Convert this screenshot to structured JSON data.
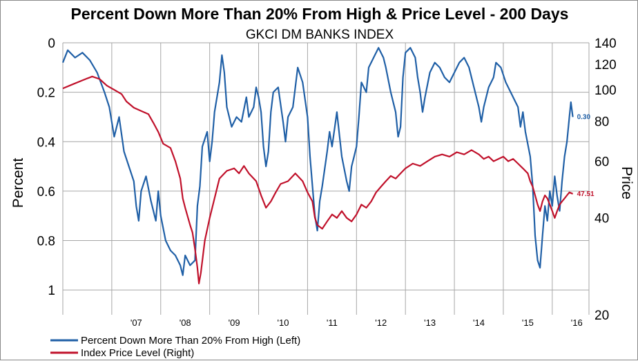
{
  "chart_data": {
    "type": "line",
    "title": "Percent Down More Than 20% From High & Price Level - 200 Days",
    "subtitle": "GKCI DM BANKS INDEX",
    "ylabel_left": "Percent",
    "ylabel_right": "Price",
    "left_axis": {
      "reversed": true,
      "range": [
        0,
        1.1
      ],
      "ticks": [
        "0",
        "0.2",
        "0.4",
        "0.6",
        "0.8",
        "1"
      ]
    },
    "right_axis": {
      "scale": "log",
      "range": [
        20,
        140
      ],
      "ticks": [
        "20",
        "40",
        "60",
        "80",
        "100",
        "120",
        "140"
      ]
    },
    "x_ticks": [
      "'07",
      "'08",
      "'09",
      "'10",
      "'11",
      "'12",
      "'13",
      "'14",
      "'15",
      "'16"
    ],
    "grid": true,
    "legend_position": "bottom-left",
    "colors": {
      "percent": "#1f5fa6",
      "price": "#c0102a",
      "grid": "#a6a6a6"
    },
    "series": [
      {
        "name": "Percent Down More Than 20% From High (Left)",
        "axis": "left",
        "end_label": "0.30",
        "points": [
          [
            2006.0,
            0.08
          ],
          [
            2006.1,
            0.03
          ],
          [
            2006.25,
            0.06
          ],
          [
            2006.4,
            0.04
          ],
          [
            2006.55,
            0.07
          ],
          [
            2006.7,
            0.12
          ],
          [
            2006.85,
            0.2
          ],
          [
            2006.95,
            0.26
          ],
          [
            2007.05,
            0.38
          ],
          [
            2007.15,
            0.3
          ],
          [
            2007.25,
            0.44
          ],
          [
            2007.35,
            0.5
          ],
          [
            2007.45,
            0.56
          ],
          [
            2007.5,
            0.66
          ],
          [
            2007.55,
            0.72
          ],
          [
            2007.6,
            0.6
          ],
          [
            2007.7,
            0.54
          ],
          [
            2007.8,
            0.64
          ],
          [
            2007.9,
            0.72
          ],
          [
            2007.95,
            0.6
          ],
          [
            2008.0,
            0.7
          ],
          [
            2008.1,
            0.8
          ],
          [
            2008.2,
            0.84
          ],
          [
            2008.3,
            0.86
          ],
          [
            2008.4,
            0.9
          ],
          [
            2008.45,
            0.94
          ],
          [
            2008.5,
            0.86
          ],
          [
            2008.6,
            0.9
          ],
          [
            2008.7,
            0.88
          ],
          [
            2008.75,
            0.66
          ],
          [
            2008.8,
            0.58
          ],
          [
            2008.85,
            0.42
          ],
          [
            2008.95,
            0.36
          ],
          [
            2009.0,
            0.48
          ],
          [
            2009.05,
            0.4
          ],
          [
            2009.1,
            0.28
          ],
          [
            2009.2,
            0.16
          ],
          [
            2009.25,
            0.05
          ],
          [
            2009.3,
            0.12
          ],
          [
            2009.35,
            0.26
          ],
          [
            2009.45,
            0.34
          ],
          [
            2009.55,
            0.3
          ],
          [
            2009.65,
            0.32
          ],
          [
            2009.75,
            0.22
          ],
          [
            2009.8,
            0.3
          ],
          [
            2009.9,
            0.26
          ],
          [
            2009.95,
            0.18
          ],
          [
            2010.0,
            0.22
          ],
          [
            2010.05,
            0.28
          ],
          [
            2010.1,
            0.42
          ],
          [
            2010.15,
            0.5
          ],
          [
            2010.2,
            0.44
          ],
          [
            2010.25,
            0.28
          ],
          [
            2010.3,
            0.2
          ],
          [
            2010.4,
            0.18
          ],
          [
            2010.5,
            0.32
          ],
          [
            2010.55,
            0.4
          ],
          [
            2010.6,
            0.3
          ],
          [
            2010.7,
            0.26
          ],
          [
            2010.8,
            0.1
          ],
          [
            2010.9,
            0.16
          ],
          [
            2011.0,
            0.3
          ],
          [
            2011.05,
            0.46
          ],
          [
            2011.1,
            0.58
          ],
          [
            2011.15,
            0.7
          ],
          [
            2011.2,
            0.76
          ],
          [
            2011.25,
            0.64
          ],
          [
            2011.3,
            0.58
          ],
          [
            2011.4,
            0.44
          ],
          [
            2011.45,
            0.36
          ],
          [
            2011.5,
            0.42
          ],
          [
            2011.6,
            0.28
          ],
          [
            2011.7,
            0.46
          ],
          [
            2011.8,
            0.56
          ],
          [
            2011.85,
            0.6
          ],
          [
            2011.9,
            0.5
          ],
          [
            2011.95,
            0.46
          ],
          [
            2012.0,
            0.42
          ],
          [
            2012.05,
            0.3
          ],
          [
            2012.1,
            0.16
          ],
          [
            2012.2,
            0.2
          ],
          [
            2012.25,
            0.1
          ],
          [
            2012.35,
            0.06
          ],
          [
            2012.45,
            0.02
          ],
          [
            2012.55,
            0.06
          ],
          [
            2012.6,
            0.1
          ],
          [
            2012.7,
            0.2
          ],
          [
            2012.8,
            0.28
          ],
          [
            2012.85,
            0.38
          ],
          [
            2012.9,
            0.34
          ],
          [
            2012.95,
            0.14
          ],
          [
            2013.0,
            0.04
          ],
          [
            2013.1,
            0.02
          ],
          [
            2013.2,
            0.06
          ],
          [
            2013.25,
            0.14
          ],
          [
            2013.3,
            0.2
          ],
          [
            2013.35,
            0.28
          ],
          [
            2013.4,
            0.22
          ],
          [
            2013.5,
            0.12
          ],
          [
            2013.6,
            0.08
          ],
          [
            2013.7,
            0.1
          ],
          [
            2013.8,
            0.14
          ],
          [
            2013.9,
            0.16
          ],
          [
            2014.0,
            0.12
          ],
          [
            2014.1,
            0.08
          ],
          [
            2014.2,
            0.06
          ],
          [
            2014.3,
            0.1
          ],
          [
            2014.4,
            0.18
          ],
          [
            2014.5,
            0.26
          ],
          [
            2014.55,
            0.32
          ],
          [
            2014.6,
            0.26
          ],
          [
            2014.7,
            0.18
          ],
          [
            2014.8,
            0.14
          ],
          [
            2014.85,
            0.08
          ],
          [
            2014.95,
            0.1
          ],
          [
            2015.05,
            0.16
          ],
          [
            2015.15,
            0.2
          ],
          [
            2015.3,
            0.26
          ],
          [
            2015.35,
            0.34
          ],
          [
            2015.4,
            0.28
          ],
          [
            2015.45,
            0.36
          ],
          [
            2015.55,
            0.46
          ],
          [
            2015.6,
            0.58
          ],
          [
            2015.65,
            0.78
          ],
          [
            2015.7,
            0.88
          ],
          [
            2015.75,
            0.91
          ],
          [
            2015.8,
            0.78
          ],
          [
            2015.85,
            0.66
          ],
          [
            2015.9,
            0.72
          ],
          [
            2015.95,
            0.6
          ],
          [
            2016.0,
            0.66
          ],
          [
            2016.05,
            0.54
          ],
          [
            2016.1,
            0.62
          ],
          [
            2016.15,
            0.68
          ],
          [
            2016.2,
            0.56
          ],
          [
            2016.25,
            0.46
          ],
          [
            2016.3,
            0.4
          ],
          [
            2016.35,
            0.3
          ],
          [
            2016.38,
            0.24
          ],
          [
            2016.42,
            0.3
          ]
        ]
      },
      {
        "name": "Index Price Level (Right)",
        "axis": "right",
        "end_label": "47.51",
        "points": [
          [
            2006.0,
            101
          ],
          [
            2006.2,
            104
          ],
          [
            2006.4,
            107
          ],
          [
            2006.6,
            110
          ],
          [
            2006.75,
            108
          ],
          [
            2006.9,
            103
          ],
          [
            2007.05,
            100
          ],
          [
            2007.2,
            97
          ],
          [
            2007.3,
            92
          ],
          [
            2007.45,
            88
          ],
          [
            2007.6,
            86
          ],
          [
            2007.75,
            84
          ],
          [
            2007.85,
            79
          ],
          [
            2007.95,
            74
          ],
          [
            2008.05,
            68
          ],
          [
            2008.2,
            66
          ],
          [
            2008.3,
            60
          ],
          [
            2008.4,
            53
          ],
          [
            2008.45,
            46
          ],
          [
            2008.5,
            43
          ],
          [
            2008.6,
            38
          ],
          [
            2008.65,
            36
          ],
          [
            2008.7,
            32
          ],
          [
            2008.75,
            28
          ],
          [
            2008.78,
            25
          ],
          [
            2008.82,
            27
          ],
          [
            2008.9,
            34
          ],
          [
            2009.0,
            40
          ],
          [
            2009.1,
            46
          ],
          [
            2009.2,
            53
          ],
          [
            2009.35,
            56
          ],
          [
            2009.5,
            57
          ],
          [
            2009.6,
            55
          ],
          [
            2009.7,
            58
          ],
          [
            2009.8,
            55
          ],
          [
            2009.95,
            52
          ],
          [
            2010.05,
            47
          ],
          [
            2010.15,
            43
          ],
          [
            2010.25,
            45
          ],
          [
            2010.35,
            48
          ],
          [
            2010.45,
            51
          ],
          [
            2010.6,
            52
          ],
          [
            2010.75,
            55
          ],
          [
            2010.9,
            52
          ],
          [
            2011.0,
            48
          ],
          [
            2011.1,
            45
          ],
          [
            2011.15,
            40
          ],
          [
            2011.2,
            38
          ],
          [
            2011.3,
            37
          ],
          [
            2011.4,
            39
          ],
          [
            2011.5,
            41
          ],
          [
            2011.6,
            40
          ],
          [
            2011.7,
            42
          ],
          [
            2011.8,
            40
          ],
          [
            2011.9,
            39
          ],
          [
            2012.0,
            41
          ],
          [
            2012.1,
            44
          ],
          [
            2012.2,
            43
          ],
          [
            2012.3,
            45
          ],
          [
            2012.4,
            48
          ],
          [
            2012.5,
            50
          ],
          [
            2012.6,
            52
          ],
          [
            2012.7,
            54
          ],
          [
            2012.8,
            53
          ],
          [
            2012.9,
            55
          ],
          [
            2013.0,
            57
          ],
          [
            2013.15,
            59
          ],
          [
            2013.3,
            58
          ],
          [
            2013.45,
            60
          ],
          [
            2013.6,
            62
          ],
          [
            2013.75,
            63
          ],
          [
            2013.9,
            62
          ],
          [
            2014.05,
            64
          ],
          [
            2014.2,
            63
          ],
          [
            2014.35,
            65
          ],
          [
            2014.5,
            63
          ],
          [
            2014.6,
            61
          ],
          [
            2014.7,
            62
          ],
          [
            2014.8,
            60
          ],
          [
            2014.9,
            61
          ],
          [
            2015.0,
            62
          ],
          [
            2015.1,
            60
          ],
          [
            2015.2,
            61
          ],
          [
            2015.3,
            59
          ],
          [
            2015.4,
            57
          ],
          [
            2015.5,
            55
          ],
          [
            2015.55,
            52
          ],
          [
            2015.6,
            50
          ],
          [
            2015.65,
            47
          ],
          [
            2015.7,
            44
          ],
          [
            2015.75,
            42
          ],
          [
            2015.8,
            45
          ],
          [
            2015.85,
            47
          ],
          [
            2015.9,
            46
          ],
          [
            2015.95,
            44
          ],
          [
            2016.0,
            42
          ],
          [
            2016.05,
            40
          ],
          [
            2016.1,
            42
          ],
          [
            2016.15,
            44
          ],
          [
            2016.2,
            45
          ],
          [
            2016.25,
            46
          ],
          [
            2016.3,
            47
          ],
          [
            2016.35,
            48
          ],
          [
            2016.42,
            47.51
          ]
        ]
      }
    ]
  }
}
